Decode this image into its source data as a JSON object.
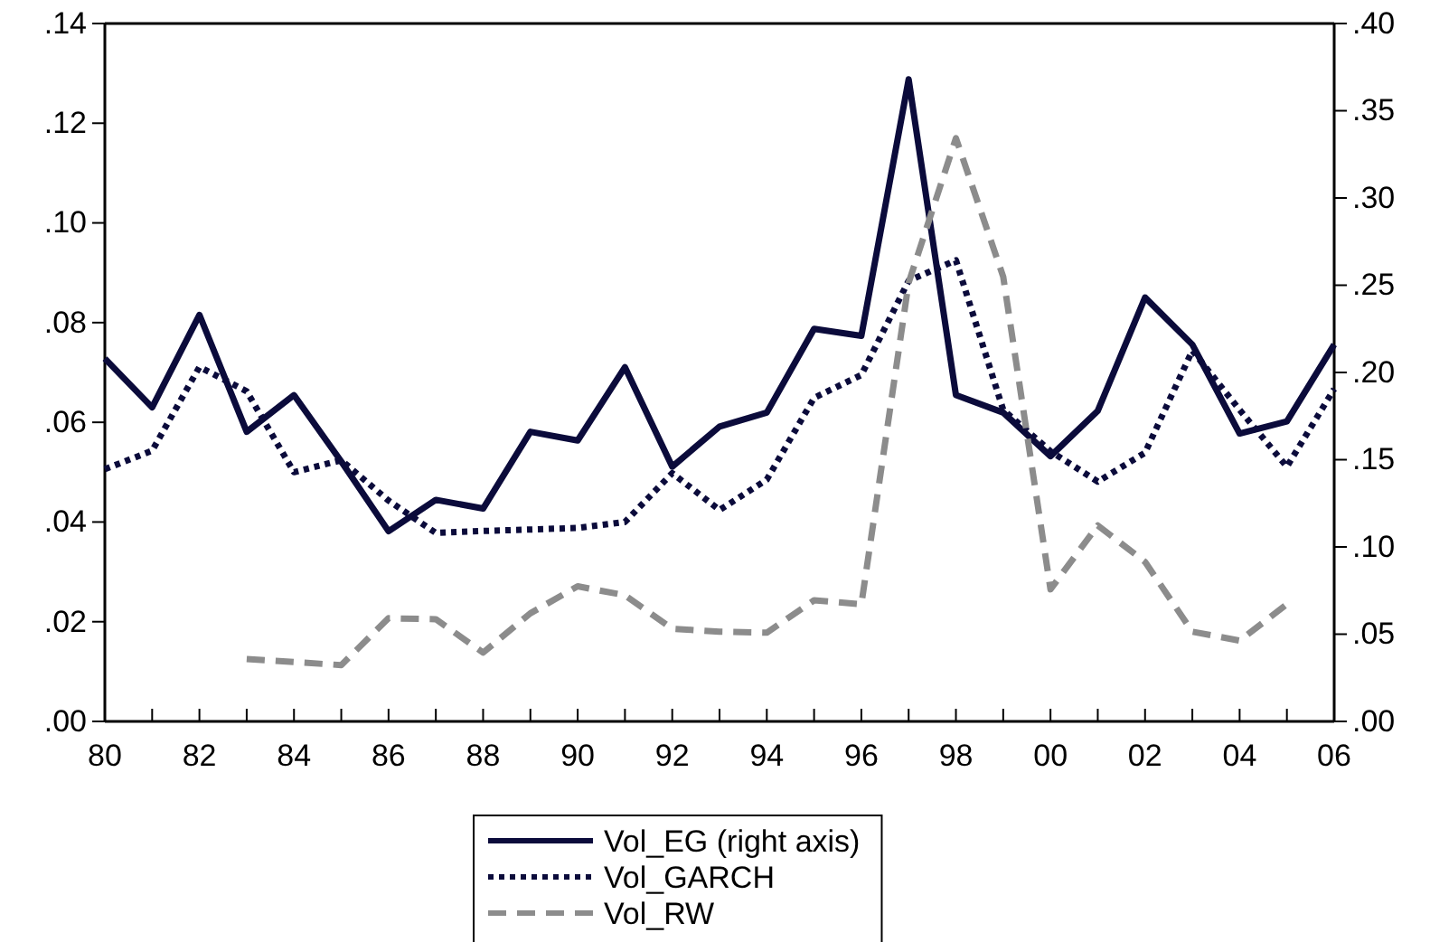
{
  "chart_data": {
    "type": "line",
    "x": [
      1980,
      1981,
      1982,
      1983,
      1984,
      1985,
      1986,
      1987,
      1988,
      1989,
      1990,
      1991,
      1992,
      1993,
      1994,
      1995,
      1996,
      1997,
      1998,
      1999,
      2000,
      2001,
      2002,
      2003,
      2004,
      2005,
      2006
    ],
    "series": [
      {
        "name": "Vol_EG (right axis)",
        "color": "#0b0b3b",
        "axis": "y2",
        "line_style": "solid",
        "values": [
          0.208,
          0.18,
          0.233,
          0.166,
          0.187,
          0.149,
          0.109,
          0.127,
          0.122,
          0.166,
          0.161,
          0.203,
          0.146,
          0.169,
          0.177,
          0.225,
          0.221,
          0.368,
          0.187,
          0.177,
          0.152,
          0.178,
          0.243,
          0.216,
          0.165,
          0.172,
          0.216
        ]
      },
      {
        "name": "Vol_GARCH",
        "color": "#0b0b3b",
        "line_style": "dotted",
        "values": [
          0.0506,
          0.0543,
          0.0711,
          0.0662,
          0.05,
          0.0524,
          0.0443,
          0.0378,
          0.0382,
          0.0385,
          0.0388,
          0.04,
          0.0498,
          0.0424,
          0.0485,
          0.0649,
          0.0695,
          0.0884,
          0.0925,
          0.0625,
          0.0542,
          0.0481,
          0.0539,
          0.0744,
          0.0625,
          0.0511,
          0.0667
        ]
      },
      {
        "name": "Vol_RW",
        "color": "#8c8c8c",
        "line_style": "dashed",
        "values": [
          null,
          null,
          null,
          0.0125,
          0.0119,
          0.0113,
          0.0207,
          0.0205,
          0.0138,
          0.0217,
          0.0271,
          0.0253,
          0.0186,
          0.018,
          0.0178,
          0.0243,
          0.0235,
          0.088,
          0.117,
          0.0892,
          0.0265,
          0.0393,
          0.032,
          0.018,
          0.0162,
          0.0235,
          null
        ]
      }
    ],
    "xlim": [
      1980,
      2006
    ],
    "xticks": [
      {
        "value": 1980,
        "label": "80"
      },
      {
        "value": 1981,
        "label": null
      },
      {
        "value": 1982,
        "label": "82"
      },
      {
        "value": 1983,
        "label": null
      },
      {
        "value": 1984,
        "label": "84"
      },
      {
        "value": 1985,
        "label": null
      },
      {
        "value": 1986,
        "label": "86"
      },
      {
        "value": 1987,
        "label": null
      },
      {
        "value": 1988,
        "label": "88"
      },
      {
        "value": 1989,
        "label": null
      },
      {
        "value": 1990,
        "label": "90"
      },
      {
        "value": 1991,
        "label": null
      },
      {
        "value": 1992,
        "label": "92"
      },
      {
        "value": 1993,
        "label": null
      },
      {
        "value": 1994,
        "label": "94"
      },
      {
        "value": 1995,
        "label": null
      },
      {
        "value": 1996,
        "label": "96"
      },
      {
        "value": 1997,
        "label": null
      },
      {
        "value": 1998,
        "label": "98"
      },
      {
        "value": 1999,
        "label": null
      },
      {
        "value": 2000,
        "label": "00"
      },
      {
        "value": 2001,
        "label": null
      },
      {
        "value": 2002,
        "label": "02"
      },
      {
        "value": 2003,
        "label": null
      },
      {
        "value": 2004,
        "label": "04"
      },
      {
        "value": 2005,
        "label": null
      },
      {
        "value": 2006,
        "label": "06"
      }
    ],
    "ylim": [
      0,
      0.14
    ],
    "yticks": [
      {
        "value": 0,
        "label": ".00"
      },
      {
        "value": 0.02,
        "label": ".02"
      },
      {
        "value": 0.04,
        "label": ".04"
      },
      {
        "value": 0.06,
        "label": ".06"
      },
      {
        "value": 0.08,
        "label": ".08"
      },
      {
        "value": 0.1,
        "label": ".10"
      },
      {
        "value": 0.12,
        "label": ".12"
      },
      {
        "value": 0.14,
        "label": ".14"
      }
    ],
    "y2lim": [
      0,
      0.4
    ],
    "y2ticks": [
      {
        "value": 0,
        "label": ".00"
      },
      {
        "value": 0.05,
        "label": ".05"
      },
      {
        "value": 0.1,
        "label": ".10"
      },
      {
        "value": 0.15,
        "label": ".15"
      },
      {
        "value": 0.2,
        "label": ".20"
      },
      {
        "value": 0.25,
        "label": ".25"
      },
      {
        "value": 0.3,
        "label": ".30"
      },
      {
        "value": 0.35,
        "label": ".35"
      },
      {
        "value": 0.4,
        "label": ".40"
      }
    ],
    "grid": false,
    "legend": "bottom",
    "marker": "none"
  }
}
